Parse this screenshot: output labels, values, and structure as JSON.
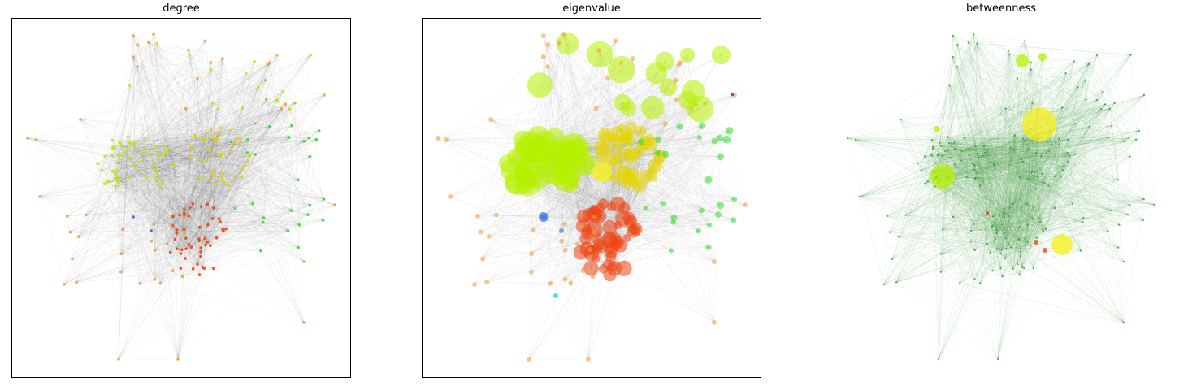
{
  "panels": [
    {
      "id": "degree",
      "title": "degree",
      "framed": true
    },
    {
      "id": "eigenvalue",
      "title": "eigenvalue",
      "framed": true
    },
    {
      "id": "betweenness",
      "title": "betweenness",
      "framed": false
    }
  ],
  "colors": {
    "edge": "#555555",
    "edge_betweenness": "#3a9a3a",
    "yellow_green": "#b6f000",
    "yellow": "#e6d600",
    "bright_yellow": "#f6ef1a",
    "red": "#ee4411",
    "orange": "#f39c3c",
    "green": "#33dd33",
    "blue": "#3366dd",
    "cyan": "#22ddcc",
    "purple": "#6633ee",
    "node_betweenness": "#3aa33a"
  }
}
